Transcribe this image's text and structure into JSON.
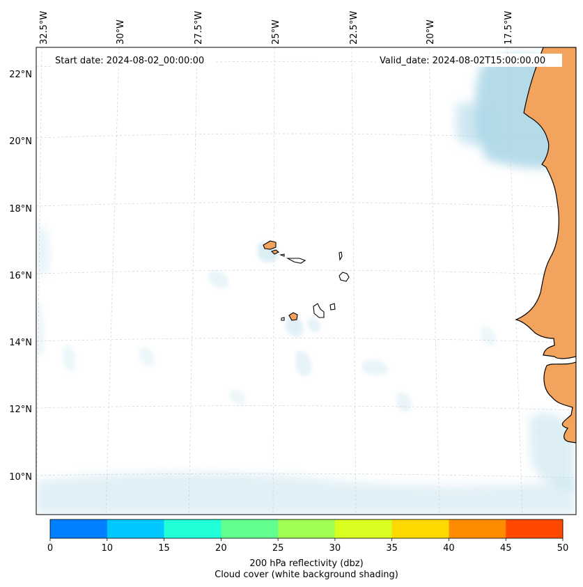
{
  "map": {
    "start_date_label": "Start date: 2024-08-02_00:00:00",
    "valid_date_label": "Valid_date: 2024-08-02T15:00:00.00",
    "lon_labels": [
      "32.5°W",
      "30°W",
      "27.5°W",
      "25°W",
      "22.5°W",
      "20°W",
      "17.5°W"
    ],
    "lat_labels": [
      "22°N",
      "20°N",
      "18°N",
      "16°N",
      "14°N",
      "12°N",
      "10°N"
    ],
    "land_color": "#f2a35e",
    "cloud_color": "#a9d5e6",
    "coast_color": "#000000"
  },
  "colorbar": {
    "colors": [
      "#0080ff",
      "#00c8ff",
      "#20ffd8",
      "#60ff90",
      "#a0ff50",
      "#d8ff20",
      "#ffd800",
      "#ff8c00",
      "#ff4800"
    ],
    "ticks": [
      "0",
      "10",
      "15",
      "20",
      "25",
      "30",
      "35",
      "40",
      "45",
      "50"
    ],
    "title_line1": "200 hPa reflectivity (dbz)",
    "title_line2": "Cloud cover (white background shading)"
  }
}
